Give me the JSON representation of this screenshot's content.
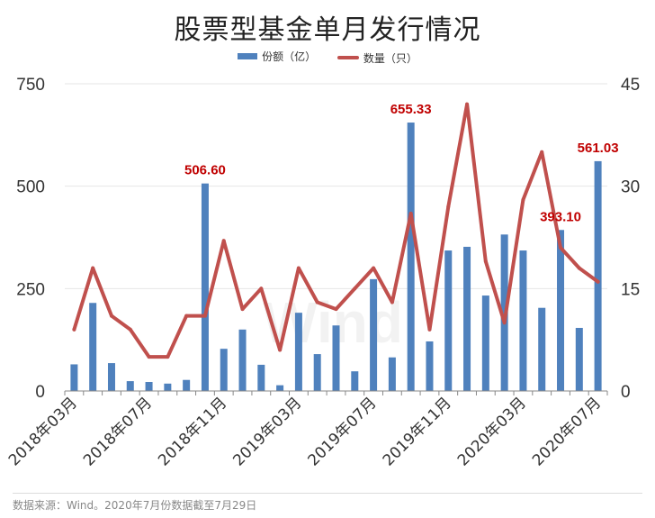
{
  "chart_data": {
    "type": "bar",
    "title": "股票型基金单月发行情况",
    "categories": [
      "2018年03月",
      "2018年04月",
      "2018年05月",
      "2018年06月",
      "2018年07月",
      "2018年08月",
      "2018年09月",
      "2018年10月",
      "2018年11月",
      "2018年12月",
      "2019年01月",
      "2019年02月",
      "2019年03月",
      "2019年04月",
      "2019年05月",
      "2019年06月",
      "2019年07月",
      "2019年08月",
      "2019年09月",
      "2019年10月",
      "2019年11月",
      "2019年12月",
      "2020年01月",
      "2020年02月",
      "2020年03月",
      "2020年04月",
      "2020年05月",
      "2020年06月",
      "2020年07月"
    ],
    "xtick_labels": [
      "2018年03月",
      "",
      "",
      "",
      "2018年07月",
      "",
      "",
      "",
      "2018年11月",
      "",
      "",
      "",
      "2019年03月",
      "",
      "",
      "",
      "2019年07月",
      "",
      "",
      "",
      "2019年11月",
      "",
      "",
      "",
      "2020年03月",
      "",
      "",
      "",
      "2020年07月"
    ],
    "series": [
      {
        "name": "份额（亿）",
        "type": "bar",
        "axis": "left",
        "color": "#4f81bd",
        "values": [
          65,
          215,
          68,
          24,
          22,
          18,
          27,
          506.6,
          103,
          150,
          64,
          14,
          191,
          90,
          160,
          48,
          273,
          82,
          655.33,
          121,
          343,
          352,
          233,
          382,
          343,
          203,
          393.1,
          154,
          561.03
        ]
      },
      {
        "name": "数量（只）",
        "type": "line",
        "axis": "right",
        "color": "#c0504d",
        "values": [
          9,
          18,
          11,
          9,
          5,
          5,
          11,
          11,
          22,
          12,
          15,
          6,
          18,
          13,
          12,
          15,
          18,
          13,
          26,
          9,
          27,
          42,
          19,
          10,
          28,
          35,
          21,
          18,
          16
        ]
      }
    ],
    "data_labels": [
      {
        "index": 7,
        "text": "506.60"
      },
      {
        "index": 18,
        "text": "655.33"
      },
      {
        "index": 26,
        "text": "393.10"
      },
      {
        "index": 28,
        "text": "561.03"
      }
    ],
    "ylim_left": [
      0,
      750
    ],
    "yticks_left": [
      "0",
      "250",
      "500",
      "750"
    ],
    "ylim_right": [
      0,
      45
    ],
    "yticks_right": [
      "0",
      "15",
      "30",
      "45"
    ],
    "grid": true,
    "legend_position": "top-center",
    "label_color": "#c00000"
  },
  "watermark": "Wind",
  "footer": "数据来源：Wind。2020年7月份数据截至7月29日"
}
